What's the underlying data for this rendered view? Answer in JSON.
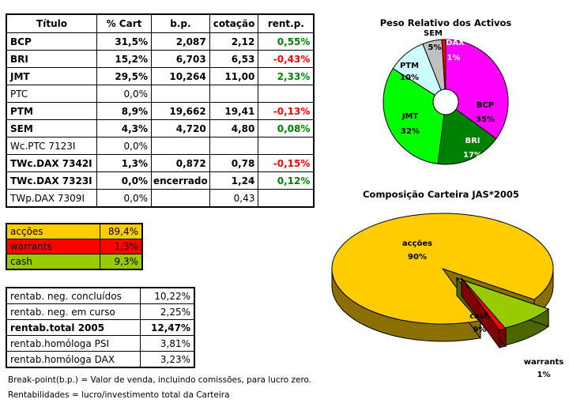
{
  "portfolio_table": {
    "headers": [
      "Título",
      "% Cart",
      "b.p.",
      "cotação",
      "rent.p."
    ],
    "rows": [
      {
        "name": "BCP",
        "cart": "31,5%",
        "bp": "2,087",
        "cot": "2,12",
        "rent": "0,55%",
        "sign": "pos",
        "bold": true
      },
      {
        "name": "BRI",
        "cart": "15,2%",
        "bp": "6,703",
        "cot": "6,53",
        "rent": "-0,43%",
        "sign": "neg",
        "bold": true
      },
      {
        "name": "JMT",
        "cart": "29,5%",
        "bp": "10,264",
        "cot": "11,00",
        "rent": "2,33%",
        "sign": "pos",
        "bold": true
      },
      {
        "name": "PTC",
        "cart": "0,0%",
        "bp": "",
        "cot": "",
        "rent": "",
        "sign": "",
        "bold": false
      },
      {
        "name": "PTM",
        "cart": "8,9%",
        "bp": "19,662",
        "cot": "19,41",
        "rent": "-0,13%",
        "sign": "neg",
        "bold": true
      },
      {
        "name": "SEM",
        "cart": "4,3%",
        "bp": "4,720",
        "cot": "4,80",
        "rent": "0,08%",
        "sign": "pos",
        "bold": true
      },
      {
        "name": "Wc.PTC 7123I",
        "cart": "0,0%",
        "bp": "",
        "cot": "",
        "rent": "",
        "sign": "",
        "bold": false
      },
      {
        "name": "TWc.DAX 7342I",
        "cart": "1,3%",
        "bp": "0,872",
        "cot": "0,78",
        "rent": "-0,15%",
        "sign": "neg",
        "bold": true
      },
      {
        "name": "TWc.DAX 7323I",
        "cart": "0,0%",
        "bp": "encerrado",
        "cot": "1,24",
        "rent": "0,12%",
        "sign": "pos",
        "bold": true
      },
      {
        "name": "TWp.DAX 7309I",
        "cart": "0,0%",
        "bp": "",
        "cot": "0,43",
        "rent": "",
        "sign": "",
        "bold": false
      }
    ]
  },
  "allocation_table": [
    {
      "label": "acções",
      "value": "89,4%",
      "color": "#ffcc00"
    },
    {
      "label": "warrants",
      "value": "1,3%",
      "color": "#ff0000"
    },
    {
      "label": "cash",
      "value": "9,3%",
      "color": "#99cc00"
    }
  ],
  "returns_table": [
    {
      "label": "rentab. neg. concluídos",
      "value": "10,22%",
      "bold": false
    },
    {
      "label": "rentab. neg. em curso",
      "value": "2,25%",
      "bold": false
    },
    {
      "label": "rentab.total 2005",
      "value": "12,47%",
      "bold": true
    },
    {
      "label": "rentab.homóloga PSI",
      "value": "3,81%",
      "bold": false
    },
    {
      "label": "rentab.homóloga DAX",
      "value": "3,23%",
      "bold": false
    }
  ],
  "notes": {
    "break_point": "Break-point(b.p.) = Valor de venda, incluindo comissões, para lucro zero.",
    "rentabilidades": "Rentabilidades = lucro/investimento total da Carteira"
  },
  "chart_data": [
    {
      "type": "pie",
      "title": "Peso Relativo dos Activos",
      "donut": true,
      "slices": [
        {
          "label": "BCP",
          "value": 35,
          "display": "35%",
          "color": "#ff00ff"
        },
        {
          "label": "BRI",
          "value": 17,
          "display": "17%",
          "color": "#008000"
        },
        {
          "label": "JMT",
          "value": 32,
          "display": "32%",
          "color": "#00ff00"
        },
        {
          "label": "PTM",
          "value": 10,
          "display": "10%",
          "color": "#ccffff"
        },
        {
          "label": "SEM",
          "value": 5,
          "display": "5%",
          "color": "#c0c0c0"
        },
        {
          "label": "DAX",
          "value": 1,
          "display": "1%",
          "color": "#ff0000"
        }
      ]
    },
    {
      "type": "pie",
      "title": "Composição Carteira JAS*2005",
      "style": "3d-exploded",
      "slices": [
        {
          "label": "acções",
          "value": 90,
          "display": "90%",
          "color": "#ffcc00"
        },
        {
          "label": "warrants",
          "value": 1,
          "display": "1%",
          "color": "#ff0000"
        },
        {
          "label": "cash",
          "value": 9,
          "display": "9%",
          "color": "#99cc00"
        }
      ]
    }
  ]
}
